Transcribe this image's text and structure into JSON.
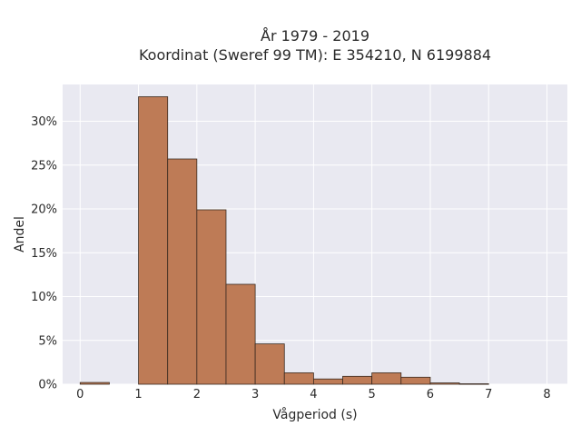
{
  "chart_data": {
    "type": "bar",
    "title_line1": "År 1979 - 2019",
    "title_line2": "Koordinat (Sweref 99 TM): E 354210, N 6199884",
    "xlabel": "Vågperiod (s)",
    "ylabel": "Andel",
    "x_ticks": [
      0,
      1,
      2,
      3,
      4,
      5,
      6,
      7,
      8
    ],
    "y_ticks": [
      0,
      5,
      10,
      15,
      20,
      25,
      30
    ],
    "y_tick_labels": [
      "0%",
      "5%",
      "10%",
      "15%",
      "20%",
      "25%",
      "30%"
    ],
    "xlim": [
      -0.3,
      8.35
    ],
    "ylim": [
      0,
      34.2
    ],
    "bar_color": "#be7b56",
    "bar_edge": "#3a2a20",
    "bars": [
      {
        "x0": 0.0,
        "x1": 0.5,
        "value": 0.2
      },
      {
        "x0": 1.0,
        "x1": 1.5,
        "value": 32.8
      },
      {
        "x0": 1.5,
        "x1": 2.0,
        "value": 25.7
      },
      {
        "x0": 2.0,
        "x1": 2.5,
        "value": 19.9
      },
      {
        "x0": 2.5,
        "x1": 3.0,
        "value": 11.4
      },
      {
        "x0": 3.0,
        "x1": 3.5,
        "value": 4.6
      },
      {
        "x0": 3.5,
        "x1": 4.0,
        "value": 1.3
      },
      {
        "x0": 4.0,
        "x1": 4.5,
        "value": 0.6
      },
      {
        "x0": 4.5,
        "x1": 5.0,
        "value": 0.9
      },
      {
        "x0": 5.0,
        "x1": 5.5,
        "value": 1.3
      },
      {
        "x0": 5.5,
        "x1": 6.0,
        "value": 0.8
      },
      {
        "x0": 6.0,
        "x1": 6.5,
        "value": 0.15
      },
      {
        "x0": 6.5,
        "x1": 7.0,
        "value": 0.05
      }
    ],
    "grid": true,
    "plot_background": "#e9e9f1"
  }
}
